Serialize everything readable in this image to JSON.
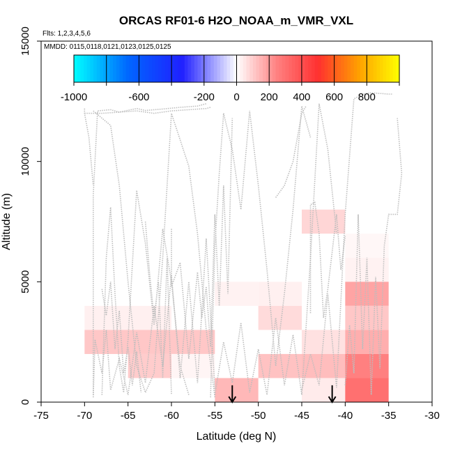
{
  "chart_data": {
    "type": "heatmap",
    "title": "ORCAS RF01-6 H2O_NOAA_m_VMR_VXL",
    "flights_note": "Flts: 1,2,3,4,5,6",
    "dates_note": "MMDD: 0115,0118,0121,0123,0125,0125",
    "xlabel": "Latitude (deg N)",
    "ylabel": "Altitude (m)",
    "xlim": [
      -75,
      -30
    ],
    "ylim": [
      0,
      15000
    ],
    "x_ticks": [
      -75,
      -70,
      -65,
      -60,
      -55,
      -50,
      -45,
      -40,
      -35,
      -30
    ],
    "y_ticks": [
      0,
      5000,
      10000,
      15000
    ],
    "colorbar": {
      "range": [
        -1000,
        1000
      ],
      "ticks": [
        -1000,
        -600,
        -200,
        0,
        200,
        400,
        600,
        800
      ],
      "colors_low": [
        "#00ffff",
        "#0066ff",
        "#2020ff",
        "#ffffff"
      ],
      "colors_high": [
        "#ffffff",
        "#ff8080",
        "#ff3030",
        "#ffa000",
        "#ffff00"
      ]
    },
    "cells": [
      {
        "x0": -70,
        "x1": -60,
        "y0": 3000,
        "y1": 4000,
        "value": 30
      },
      {
        "x0": -70,
        "x1": -55,
        "y0": 2000,
        "y1": 3000,
        "value": 110
      },
      {
        "x0": -65,
        "x1": -60,
        "y0": 1000,
        "y1": 2000,
        "value": 100
      },
      {
        "x0": -60,
        "x1": -55,
        "y0": 1000,
        "y1": 2000,
        "value": 20
      },
      {
        "x0": -55,
        "x1": -50,
        "y0": 0,
        "y1": 1000,
        "value": 140
      },
      {
        "x0": -55,
        "x1": -50,
        "y0": 4000,
        "y1": 5000,
        "value": 25
      },
      {
        "x0": -50,
        "x1": -45,
        "y0": 4000,
        "y1": 5000,
        "value": 30
      },
      {
        "x0": -50,
        "x1": -45,
        "y0": 3000,
        "y1": 4000,
        "value": 70
      },
      {
        "x0": -50,
        "x1": -45,
        "y0": 1000,
        "y1": 2000,
        "value": 120
      },
      {
        "x0": -45,
        "x1": -40,
        "y0": 7000,
        "y1": 8000,
        "value": 80
      },
      {
        "x0": -45,
        "x1": -40,
        "y0": 2000,
        "y1": 3000,
        "value": 60
      },
      {
        "x0": -45,
        "x1": -40,
        "y0": 1000,
        "y1": 2000,
        "value": 130
      },
      {
        "x0": -45,
        "x1": -40,
        "y0": 0,
        "y1": 1000,
        "value": 40
      },
      {
        "x0": -40,
        "x1": -35,
        "y0": 6000,
        "y1": 7000,
        "value": 15
      },
      {
        "x0": -40,
        "x1": -35,
        "y0": 5000,
        "y1": 6000,
        "value": 25
      },
      {
        "x0": -40,
        "x1": -35,
        "y0": 4000,
        "y1": 5000,
        "value": 180
      },
      {
        "x0": -40,
        "x1": -35,
        "y0": 3000,
        "y1": 4000,
        "value": 110
      },
      {
        "x0": -40,
        "x1": -35,
        "y0": 2000,
        "y1": 3000,
        "value": 160
      },
      {
        "x0": -40,
        "x1": -35,
        "y0": 1000,
        "y1": 2000,
        "value": 250
      },
      {
        "x0": -40,
        "x1": -35,
        "y0": 0,
        "y1": 1000,
        "value": 300
      }
    ],
    "arrows": [
      {
        "x": -53,
        "y_top": 700,
        "y_bottom": 0
      },
      {
        "x": -41.5,
        "y_top": 700,
        "y_bottom": 0
      }
    ],
    "flight_tracks": [
      [
        [
          -69,
          300
        ],
        [
          -69,
          8600
        ],
        [
          -68.5,
          12100
        ],
        [
          -67,
          12150
        ],
        [
          -66,
          12050
        ],
        [
          -64,
          12200
        ],
        [
          -63,
          12120
        ],
        [
          -61,
          12180
        ],
        [
          -59,
          12250
        ],
        [
          -57,
          12300
        ],
        [
          -56,
          12400
        ]
      ],
      [
        [
          -69,
          12100
        ],
        [
          -67,
          11500
        ],
        [
          -66,
          9000
        ],
        [
          -65,
          5000
        ],
        [
          -64,
          1500
        ],
        [
          -63,
          400
        ],
        [
          -62,
          1200
        ],
        [
          -61,
          6000
        ],
        [
          -60,
          12000
        ],
        [
          -58,
          9800
        ],
        [
          -57,
          7000
        ],
        [
          -56,
          3000
        ],
        [
          -55,
          200
        ]
      ],
      [
        [
          -68,
          300
        ],
        [
          -67.5,
          6000
        ],
        [
          -67,
          8100
        ],
        [
          -66.5,
          4500
        ],
        [
          -66,
          1500
        ],
        [
          -65.5,
          400
        ],
        [
          -65,
          2600
        ],
        [
          -64,
          8800
        ],
        [
          -63,
          6600
        ],
        [
          -62,
          3200
        ],
        [
          -61,
          7200
        ],
        [
          -60,
          5000
        ],
        [
          -59,
          1500
        ],
        [
          -58,
          300
        ]
      ],
      [
        [
          -69,
          200
        ],
        [
          -68.8,
          2600
        ],
        [
          -68,
          1200
        ],
        [
          -67.5,
          3000
        ],
        [
          -67,
          500
        ],
        [
          -66,
          1800
        ],
        [
          -65,
          300
        ],
        [
          -64,
          2900
        ],
        [
          -63,
          800
        ],
        [
          -62,
          4000
        ],
        [
          -61,
          1500
        ],
        [
          -60,
          5300
        ],
        [
          -59,
          1000
        ],
        [
          -58,
          5000
        ],
        [
          -57,
          800
        ],
        [
          -56,
          6800
        ],
        [
          -55,
          500
        ]
      ],
      [
        [
          -70,
          12000
        ],
        [
          -68,
          12000
        ],
        [
          -66,
          12050
        ],
        [
          -64,
          12100
        ],
        [
          -62,
          12000
        ],
        [
          -60,
          12100
        ],
        [
          -58,
          12150
        ],
        [
          -56,
          12200
        ],
        [
          -55.5,
          12250
        ]
      ],
      [
        [
          -55.5,
          200
        ],
        [
          -55,
          6500
        ],
        [
          -54.5,
          9500
        ],
        [
          -54,
          12000
        ],
        [
          -53,
          10500
        ],
        [
          -52,
          8000
        ],
        [
          -51,
          12100
        ],
        [
          -50,
          9000
        ],
        [
          -49,
          5500
        ],
        [
          -48,
          1500
        ],
        [
          -47,
          4500
        ],
        [
          -46,
          8000
        ],
        [
          -45,
          12300
        ],
        [
          -44,
          11000
        ]
      ],
      [
        [
          -55,
          300
        ],
        [
          -54,
          2500
        ],
        [
          -53,
          800
        ],
        [
          -52,
          3300
        ],
        [
          -51,
          400
        ],
        [
          -50,
          2200
        ],
        [
          -49,
          300
        ],
        [
          -48,
          3500
        ],
        [
          -47,
          700
        ],
        [
          -46,
          2800
        ],
        [
          -45,
          300
        ],
        [
          -44,
          6000
        ],
        [
          -43,
          12400
        ],
        [
          -42,
          10500
        ],
        [
          -41,
          7000
        ]
      ],
      [
        [
          -45,
          500
        ],
        [
          -44,
          2000
        ],
        [
          -43,
          700
        ],
        [
          -42,
          4500
        ],
        [
          -41,
          600
        ],
        [
          -40,
          7800
        ],
        [
          -39,
          12600
        ],
        [
          -38,
          12800
        ],
        [
          -37,
          12850
        ],
        [
          -35,
          12800
        ],
        [
          -34.5,
          12800
        ]
      ],
      [
        [
          -40,
          700
        ],
        [
          -39.5,
          3200
        ],
        [
          -39,
          1200
        ],
        [
          -38.5,
          7800
        ],
        [
          -38,
          2200
        ],
        [
          -37.5,
          6000
        ],
        [
          -37,
          300
        ],
        [
          -36.5,
          5200
        ],
        [
          -36,
          1400
        ],
        [
          -35.5,
          6500
        ],
        [
          -35,
          7800
        ],
        [
          -34,
          7800
        ],
        [
          -33.5,
          9500
        ],
        [
          -34,
          11800
        ]
      ],
      [
        [
          -60,
          7200
        ],
        [
          -60,
          4800
        ],
        [
          -59,
          5800
        ],
        [
          -58,
          1800
        ],
        [
          -57,
          5400
        ],
        [
          -56.5,
          3500
        ],
        [
          -56,
          4800
        ],
        [
          -55.5,
          2300
        ],
        [
          -55,
          7800
        ],
        [
          -54.5,
          4000
        ],
        [
          -54,
          9000
        ],
        [
          -53.5,
          4500
        ],
        [
          -53,
          11800
        ]
      ],
      [
        [
          -44,
          3700
        ],
        [
          -44,
          8200
        ],
        [
          -43.5,
          8300
        ],
        [
          -43,
          7000
        ],
        [
          -42.5,
          3500
        ],
        [
          -42,
          4700
        ],
        [
          -41,
          7800
        ],
        [
          -40.5,
          5500
        ],
        [
          -40,
          6900
        ]
      ],
      [
        [
          -63,
          7500
        ],
        [
          -62.5,
          5300
        ],
        [
          -62,
          3500
        ],
        [
          -61.5,
          5000
        ],
        [
          -61,
          1000
        ],
        [
          -60.5,
          6000
        ],
        [
          -60,
          300
        ]
      ],
      [
        [
          -48,
          8500
        ],
        [
          -47,
          9000
        ],
        [
          -46,
          10000
        ],
        [
          -45,
          12000
        ],
        [
          -44.5,
          12300
        ]
      ],
      [
        [
          -68,
          4700
        ],
        [
          -67.5,
          3600
        ],
        [
          -67,
          5000
        ],
        [
          -66.5,
          2200
        ],
        [
          -66,
          3800
        ],
        [
          -65.5,
          1200
        ],
        [
          -65,
          2300
        ],
        [
          -64.5,
          700
        ],
        [
          -64,
          2100
        ],
        [
          -63.5,
          400
        ]
      ],
      [
        [
          -70,
          12200
        ],
        [
          -70,
          12000
        ],
        [
          -69.5,
          11000
        ],
        [
          -69,
          9000
        ]
      ]
    ]
  }
}
